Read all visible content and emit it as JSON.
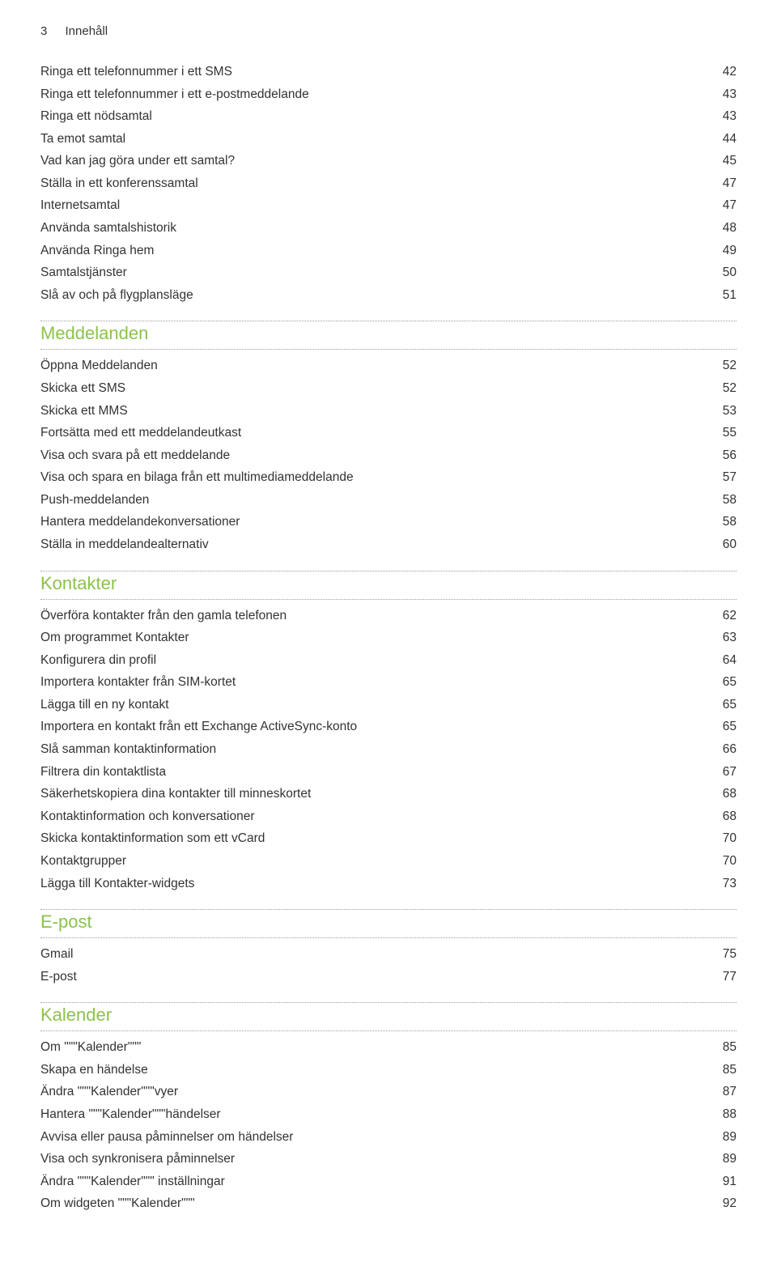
{
  "header": {
    "page_number": "3",
    "title": "Innehåll"
  },
  "continued_section": {
    "rows": [
      {
        "label": "Ringa ett telefonnummer i ett SMS",
        "page": "42"
      },
      {
        "label": "Ringa ett telefonnummer i ett e-postmeddelande",
        "page": "43"
      },
      {
        "label": "Ringa ett nödsamtal",
        "page": "43"
      },
      {
        "label": "Ta emot samtal",
        "page": "44"
      },
      {
        "label": "Vad kan jag göra under ett samtal?",
        "page": "45"
      },
      {
        "label": "Ställa in ett konferenssamtal",
        "page": "47"
      },
      {
        "label": "Internetsamtal",
        "page": "47"
      },
      {
        "label": "Använda samtalshistorik",
        "page": "48"
      },
      {
        "label": "Använda Ringa hem",
        "page": "49"
      },
      {
        "label": "Samtalstjänster",
        "page": "50"
      },
      {
        "label": "Slå av och på flygplansläge",
        "page": "51"
      }
    ]
  },
  "sections": [
    {
      "heading": "Meddelanden",
      "rows": [
        {
          "label": "Öppna Meddelanden",
          "page": "52"
        },
        {
          "label": "Skicka ett SMS",
          "page": "52"
        },
        {
          "label": "Skicka ett MMS",
          "page": "53"
        },
        {
          "label": "Fortsätta med ett meddelandeutkast",
          "page": "55"
        },
        {
          "label": "Visa och svara på ett meddelande",
          "page": "56"
        },
        {
          "label": "Visa och spara en bilaga från ett multimediameddelande",
          "page": "57"
        },
        {
          "label": "Push-meddelanden",
          "page": "58"
        },
        {
          "label": "Hantera meddelandekonversationer",
          "page": "58"
        },
        {
          "label": "Ställa in meddelandealternativ",
          "page": "60"
        }
      ]
    },
    {
      "heading": "Kontakter",
      "rows": [
        {
          "label": "Överföra kontakter från den gamla telefonen",
          "page": "62"
        },
        {
          "label": "Om programmet Kontakter",
          "page": "63"
        },
        {
          "label": "Konfigurera din profil",
          "page": "64"
        },
        {
          "label": "Importera kontakter från SIM-kortet",
          "page": "65"
        },
        {
          "label": "Lägga till en ny kontakt",
          "page": "65"
        },
        {
          "label": "Importera en kontakt från ett Exchange ActiveSync-konto",
          "page": "65"
        },
        {
          "label": "Slå samman kontaktinformation",
          "page": "66"
        },
        {
          "label": "Filtrera din kontaktlista",
          "page": "67"
        },
        {
          "label": "Säkerhetskopiera dina kontakter till minneskortet",
          "page": "68"
        },
        {
          "label": "Kontaktinformation och konversationer",
          "page": "68"
        },
        {
          "label": "Skicka kontaktinformation som ett vCard",
          "page": "70"
        },
        {
          "label": "Kontaktgrupper",
          "page": "70"
        },
        {
          "label": "Lägga till Kontakter-widgets",
          "page": "73"
        }
      ]
    },
    {
      "heading": "E-post",
      "rows": [
        {
          "label": "Gmail",
          "page": "75"
        },
        {
          "label": "E-post",
          "page": "77"
        }
      ]
    },
    {
      "heading": "Kalender",
      "rows": [
        {
          "label": "Om \"\"\"Kalender\"\"\"",
          "page": "85"
        },
        {
          "label": "Skapa en händelse",
          "page": "85"
        },
        {
          "label": "Ändra \"\"\"Kalender\"\"\"vyer",
          "page": "87"
        },
        {
          "label": "Hantera \"\"\"Kalender\"\"\"händelser",
          "page": "88"
        },
        {
          "label": "Avvisa eller pausa påminnelser om händelser",
          "page": "89"
        },
        {
          "label": "Visa och synkronisera påminnelser",
          "page": "89"
        },
        {
          "label": "Ändra \"\"\"Kalender\"\"\" inställningar",
          "page": "91"
        },
        {
          "label": "Om widgeten \"\"\"Kalender\"\"\"",
          "page": "92"
        }
      ]
    }
  ],
  "colors": {
    "heading": "#8bc34a",
    "text": "#333333",
    "dotted": "#9e9e9e",
    "background": "#ffffff"
  }
}
